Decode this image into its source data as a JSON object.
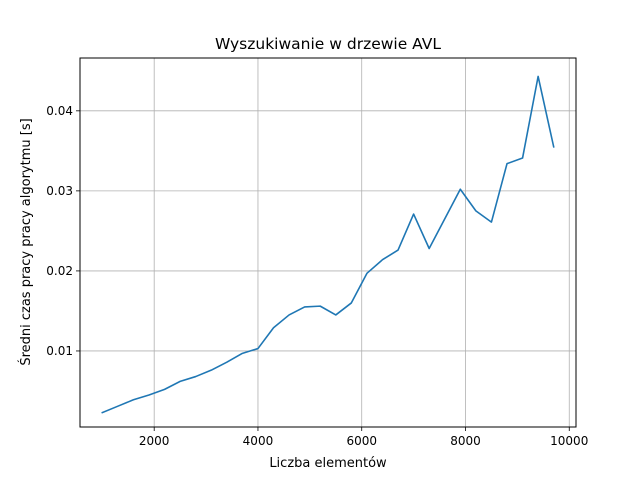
{
  "chart_data": {
    "type": "line",
    "title": "Wyszukiwanie w drzewie AVL",
    "xlabel": "Liczba elementów",
    "ylabel": "Średni czas pracy pracy algorytmu [s]",
    "xlim": [
      570,
      10130
    ],
    "ylim": [
      0.0005,
      0.0466
    ],
    "xticks": [
      2000,
      4000,
      6000,
      8000,
      10000
    ],
    "xtick_labels": [
      "2000",
      "4000",
      "6000",
      "8000",
      "10000"
    ],
    "yticks": [
      0.01,
      0.02,
      0.03,
      0.04
    ],
    "ytick_labels": [
      "0.01",
      "0.02",
      "0.03",
      "0.04"
    ],
    "grid": true,
    "line_color": "#1f77b4",
    "series": [
      {
        "x": [
          1000,
          1300,
          1600,
          1900,
          2200,
          2500,
          2800,
          3100,
          3400,
          3700,
          4000,
          4300,
          4600,
          4900,
          5200,
          5500,
          5800,
          6100,
          6400,
          6700,
          7000,
          7300,
          7600,
          7900,
          8200,
          8500,
          8800,
          9100,
          9400,
          9700
        ],
        "values": [
          0.0023,
          0.0031,
          0.0039,
          0.0045,
          0.0052,
          0.0062,
          0.0068,
          0.0076,
          0.0086,
          0.0097,
          0.0103,
          0.0129,
          0.0145,
          0.0155,
          0.0156,
          0.0145,
          0.016,
          0.0197,
          0.0214,
          0.0226,
          0.0271,
          0.0228,
          0.0265,
          0.0302,
          0.0275,
          0.0261,
          0.0334,
          0.0341,
          0.0443,
          0.0355
        ]
      }
    ]
  }
}
